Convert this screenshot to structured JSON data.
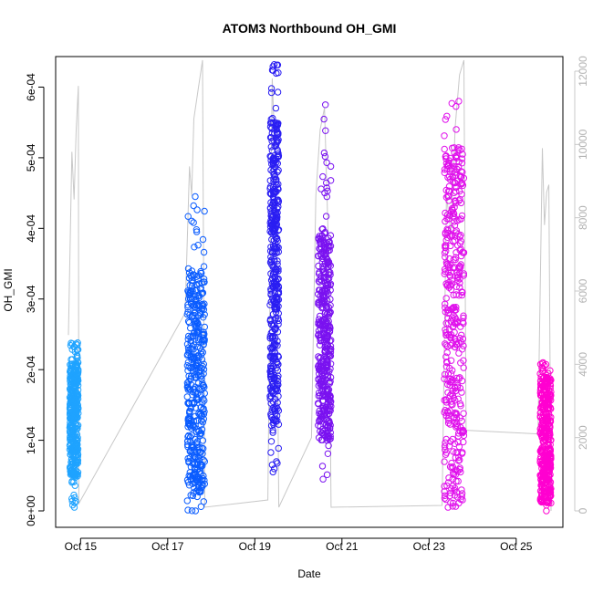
{
  "chart_data": {
    "type": "scatter",
    "title": "ATOM3 Northbound OH_GMI",
    "xlabel": "Date",
    "ylabel": "OH_GMI",
    "ylim": [
      0,
      0.00062
    ],
    "y_ticks": [
      0,
      0.0001,
      0.0002,
      0.0003,
      0.0004,
      0.0005,
      0.0006
    ],
    "y_tick_labels": [
      "0e+00",
      "1e-04",
      "2e-04",
      "3e-04",
      "4e-04",
      "5e-04",
      "6e-04"
    ],
    "x_ticks": [
      "Oct 15",
      "Oct 17",
      "Oct 19",
      "Oct 21",
      "Oct 23",
      "Oct 25"
    ],
    "x_tick_values": [
      15,
      17,
      19,
      21,
      23,
      25
    ],
    "xlim": [
      14.7,
      25.8
    ],
    "y2_ticks": [
      0,
      2000,
      4000,
      6000,
      8000,
      10000,
      12000
    ],
    "y2_tick_labels": [
      "0",
      "2000",
      "4000",
      "6000",
      "8000",
      "10000",
      "12000"
    ],
    "y2lim": [
      0,
      12000
    ],
    "y2_series_color": "#c8c8c8",
    "series": [
      {
        "color": "#1fa3ff",
        "x_range": [
          14.75,
          14.95
        ],
        "y_min": 5e-06,
        "y_max": 0.000238,
        "y_dense_low": 5e-05,
        "y_dense_high": 0.00021
      },
      {
        "color": "#0a5cff",
        "x_range": [
          17.45,
          17.85
        ],
        "y_min": 0.0,
        "y_max": 0.000445,
        "y_dense_low": 2e-05,
        "y_dense_high": 0.00034
      },
      {
        "color": "#2a1ef2",
        "x_range": [
          19.35,
          19.55
        ],
        "y_min": 5.5e-05,
        "y_max": 0.000632,
        "y_dense_low": 0.00012,
        "y_dense_high": 0.00055
      },
      {
        "color": "#7a12f0",
        "x_range": [
          20.45,
          20.75
        ],
        "y_min": 4.5e-05,
        "y_max": 0.000575,
        "y_dense_low": 0.0001,
        "y_dense_high": 0.00039
      },
      {
        "color": "#e010ec",
        "x_range": [
          23.35,
          23.8
        ],
        "y_min": 5e-06,
        "y_max": 0.00058,
        "y_dense_low": 1e-05,
        "y_dense_high": 0.00052
      },
      {
        "color": "#ff00d0",
        "x_range": [
          25.55,
          25.8
        ],
        "y_min": 0.0,
        "y_max": 0.00021,
        "y_dense_low": 1e-05,
        "y_dense_high": 0.00019
      }
    ],
    "altitude_path": [
      [
        14.72,
        4800
      ],
      [
        14.8,
        9800
      ],
      [
        14.85,
        8500
      ],
      [
        14.9,
        10400
      ],
      [
        14.95,
        11600
      ],
      [
        14.96,
        200
      ],
      [
        17.4,
        5400
      ],
      [
        17.5,
        9400
      ],
      [
        17.55,
        8600
      ],
      [
        17.6,
        10700
      ],
      [
        17.7,
        11500
      ],
      [
        17.8,
        12300
      ],
      [
        17.85,
        100
      ],
      [
        19.3,
        300
      ],
      [
        19.4,
        11800
      ],
      [
        19.45,
        10200
      ],
      [
        19.5,
        7200
      ],
      [
        19.55,
        100
      ],
      [
        20.3,
        2000
      ],
      [
        20.4,
        8600
      ],
      [
        20.5,
        10400
      ],
      [
        20.6,
        11000
      ],
      [
        20.7,
        6800
      ],
      [
        20.75,
        100
      ],
      [
        23.3,
        150
      ],
      [
        23.4,
        8600
      ],
      [
        23.5,
        7600
      ],
      [
        23.6,
        10500
      ],
      [
        23.7,
        11900
      ],
      [
        23.8,
        12300
      ],
      [
        23.85,
        2200
      ],
      [
        25.5,
        2100
      ],
      [
        25.6,
        9900
      ],
      [
        25.65,
        7800
      ],
      [
        25.7,
        8700
      ],
      [
        25.75,
        8900
      ],
      [
        25.8,
        0
      ]
    ],
    "grid": false,
    "legend": "none"
  }
}
